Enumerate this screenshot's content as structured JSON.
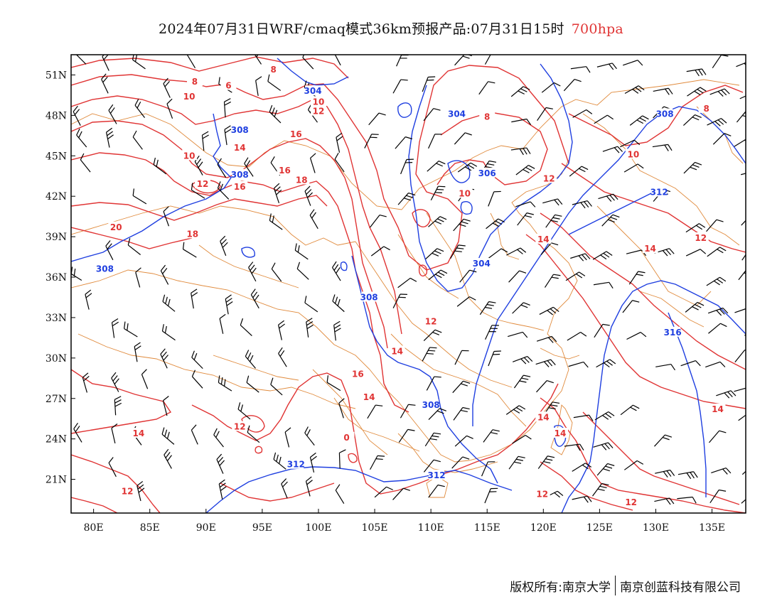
{
  "title": {
    "main": "2024年07月31日WRF/cmaq模式36km预报产品:07月31日15时",
    "level": "700hpa",
    "level_color": "#e03434"
  },
  "axes": {
    "lon_ticks": [
      "80E",
      "85E",
      "90E",
      "95E",
      "100E",
      "105E",
      "110E",
      "115E",
      "120E",
      "125E",
      "130E",
      "135E"
    ],
    "lon_values": [
      80,
      85,
      90,
      95,
      100,
      105,
      110,
      115,
      120,
      125,
      130,
      135
    ],
    "lat_ticks": [
      "51N",
      "48N",
      "45N",
      "42N",
      "39N",
      "36N",
      "33N",
      "30N",
      "27N",
      "24N",
      "21N"
    ],
    "lat_values": [
      51,
      48,
      45,
      42,
      39,
      36,
      33,
      30,
      27,
      24,
      21
    ],
    "lon_range": [
      78,
      138
    ],
    "lat_range": [
      18.5,
      52.5
    ]
  },
  "colors": {
    "temperature": "#e03434",
    "geopotential": "#1f3fe0",
    "boundary": "#e08a3c",
    "wind": "#000000"
  },
  "temperature_labels": [
    {
      "text": "8",
      "lon": 96,
      "lat": 51.4
    },
    {
      "text": "8",
      "lon": 89,
      "lat": 50.5
    },
    {
      "text": "6",
      "lon": 92,
      "lat": 50.2
    },
    {
      "text": "10",
      "lon": 88.5,
      "lat": 49.4
    },
    {
      "text": "10",
      "lon": 100,
      "lat": 49
    },
    {
      "text": "12",
      "lon": 100,
      "lat": 48.3
    },
    {
      "text": "10",
      "lon": 88.5,
      "lat": 45
    },
    {
      "text": "14",
      "lon": 93,
      "lat": 45.6
    },
    {
      "text": "16",
      "lon": 98,
      "lat": 46.6
    },
    {
      "text": "16",
      "lon": 97,
      "lat": 43.9
    },
    {
      "text": "18",
      "lon": 98.5,
      "lat": 43.2
    },
    {
      "text": "12",
      "lon": 89.7,
      "lat": 42.9
    },
    {
      "text": "16",
      "lon": 93,
      "lat": 42.7
    },
    {
      "text": "20",
      "lon": 82,
      "lat": 39.7
    },
    {
      "text": "18",
      "lon": 88.8,
      "lat": 39.2
    },
    {
      "text": "8",
      "lon": 115,
      "lat": 47.9
    },
    {
      "text": "10",
      "lon": 113,
      "lat": 42.2
    },
    {
      "text": "12",
      "lon": 120.5,
      "lat": 43.3
    },
    {
      "text": "10",
      "lon": 128,
      "lat": 45.1
    },
    {
      "text": "8",
      "lon": 134.5,
      "lat": 48.5
    },
    {
      "text": "14",
      "lon": 120,
      "lat": 38.8
    },
    {
      "text": "14",
      "lon": 129.5,
      "lat": 38.1
    },
    {
      "text": "12",
      "lon": 134,
      "lat": 38.9
    },
    {
      "text": "12",
      "lon": 110,
      "lat": 32.7
    },
    {
      "text": "14",
      "lon": 107,
      "lat": 30.5
    },
    {
      "text": "16",
      "lon": 103.5,
      "lat": 28.8
    },
    {
      "text": "14",
      "lon": 104.5,
      "lat": 27.1
    },
    {
      "text": "14",
      "lon": 120,
      "lat": 25.6
    },
    {
      "text": "14",
      "lon": 121.5,
      "lat": 24.4
    },
    {
      "text": "14",
      "lon": 135.5,
      "lat": 26.2
    },
    {
      "text": "12",
      "lon": 93,
      "lat": 24.9
    },
    {
      "text": "14",
      "lon": 84,
      "lat": 24.4
    },
    {
      "text": "12",
      "lon": 83,
      "lat": 20.1
    },
    {
      "text": "12",
      "lon": 119.9,
      "lat": 19.9
    },
    {
      "text": "12",
      "lon": 127.8,
      "lat": 19.3
    },
    {
      "text": "0",
      "lon": 102.5,
      "lat": 24.1
    }
  ],
  "geopotential_labels": [
    {
      "text": "304",
      "lon": 99.5,
      "lat": 49.8
    },
    {
      "text": "304",
      "lon": 112.3,
      "lat": 48.1
    },
    {
      "text": "308",
      "lon": 93,
      "lat": 46.9
    },
    {
      "text": "308",
      "lon": 93,
      "lat": 43.6
    },
    {
      "text": "308",
      "lon": 130.8,
      "lat": 48.1
    },
    {
      "text": "306",
      "lon": 115,
      "lat": 43.7
    },
    {
      "text": "312",
      "lon": 130.3,
      "lat": 42.3
    },
    {
      "text": "304",
      "lon": 114.5,
      "lat": 37
    },
    {
      "text": "308",
      "lon": 81,
      "lat": 36.6
    },
    {
      "text": "308",
      "lon": 104.5,
      "lat": 34.5
    },
    {
      "text": "316",
      "lon": 131.5,
      "lat": 31.9
    },
    {
      "text": "308",
      "lon": 110,
      "lat": 26.5
    },
    {
      "text": "312",
      "lon": 98,
      "lat": 22.1
    },
    {
      "text": "312",
      "lon": 110.5,
      "lat": 21.3
    }
  ],
  "footer": {
    "left": "版权所有:南京大学",
    "right": "南京创蓝科技有限公司"
  }
}
